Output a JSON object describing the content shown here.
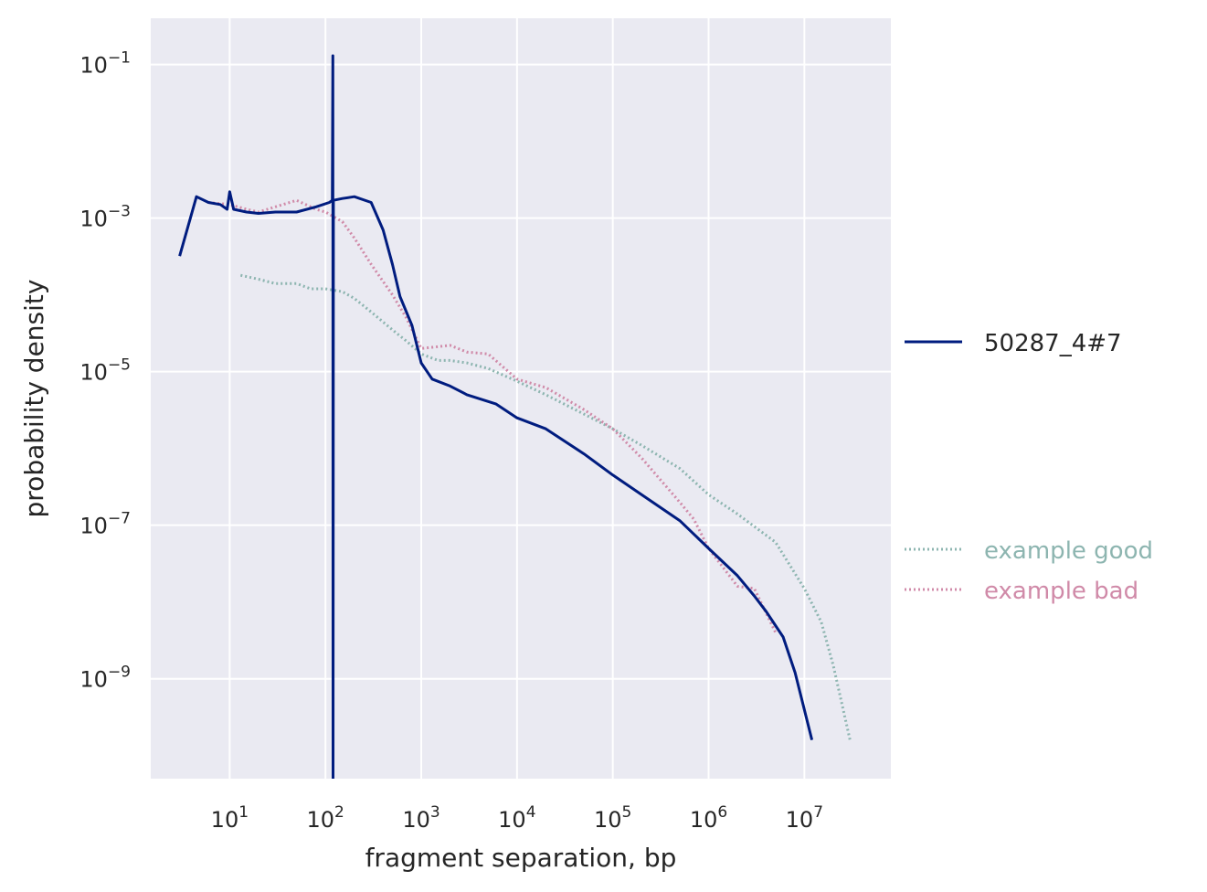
{
  "chart_data": {
    "type": "line",
    "xlabel": "fragment separation, bp",
    "ylabel": "probability density",
    "xscale": "log",
    "yscale": "log",
    "xlim": [
      1.5,
      80000000
    ],
    "ylim": [
      5e-11,
      0.4
    ],
    "grid": true,
    "x_ticks": [
      {
        "value": 10,
        "base": "10",
        "exp": "1"
      },
      {
        "value": 100,
        "base": "10",
        "exp": "2"
      },
      {
        "value": 1000,
        "base": "10",
        "exp": "3"
      },
      {
        "value": 10000,
        "base": "10",
        "exp": "4"
      },
      {
        "value": 100000,
        "base": "10",
        "exp": "5"
      },
      {
        "value": 1000000,
        "base": "10",
        "exp": "6"
      },
      {
        "value": 10000000,
        "base": "10",
        "exp": "7"
      }
    ],
    "y_ticks": [
      {
        "value": 0.1,
        "base": "10",
        "exp": "−1"
      },
      {
        "value": 0.001,
        "base": "10",
        "exp": "−3"
      },
      {
        "value": 1e-05,
        "base": "10",
        "exp": "−5"
      },
      {
        "value": 1e-07,
        "base": "10",
        "exp": "−7"
      },
      {
        "value": 1e-09,
        "base": "10",
        "exp": "−9"
      }
    ],
    "series": [
      {
        "name": "50287_4#7",
        "color": "#001c7f",
        "style": "solid",
        "points": [
          [
            3,
            0.00032
          ],
          [
            4.5,
            0.0019
          ],
          [
            6,
            0.0016
          ],
          [
            8,
            0.0015
          ],
          [
            9.4,
            0.0013
          ],
          [
            10,
            0.0022
          ],
          [
            11,
            0.0013
          ],
          [
            15,
            0.0012
          ],
          [
            20,
            0.00115
          ],
          [
            30,
            0.0012
          ],
          [
            50,
            0.0012
          ],
          [
            80,
            0.0014
          ],
          [
            110,
            0.0016
          ],
          [
            118,
            0.0017
          ],
          [
            119.5,
            0.13
          ],
          [
            120,
            5e-11
          ],
          [
            121,
            0.0017
          ],
          [
            150,
            0.0018
          ],
          [
            200,
            0.0019
          ],
          [
            300,
            0.0016
          ],
          [
            400,
            0.0007
          ],
          [
            500,
            0.00025
          ],
          [
            600,
            9.5e-05
          ],
          [
            800,
            4e-05
          ],
          [
            1000,
            1.3e-05
          ],
          [
            1300,
            8e-06
          ],
          [
            2000,
            6.5e-06
          ],
          [
            3000,
            5e-06
          ],
          [
            6000,
            3.8e-06
          ],
          [
            10000,
            2.5e-06
          ],
          [
            20000,
            1.8e-06
          ],
          [
            50000,
            8.5e-07
          ],
          [
            100000,
            4.5e-07
          ],
          [
            200000,
            2.5e-07
          ],
          [
            500000,
            1.15e-07
          ],
          [
            1000000,
            5e-08
          ],
          [
            2000000,
            2.2e-08
          ],
          [
            3000000,
            1.2e-08
          ],
          [
            4000000,
            7.5e-09
          ],
          [
            6000000,
            3.5e-09
          ],
          [
            8000000,
            1.2e-09
          ],
          [
            12000000,
            1.6e-10
          ]
        ]
      },
      {
        "name": "example good",
        "color": "#8db5b0",
        "style": "dotted",
        "points": [
          [
            13,
            0.00018
          ],
          [
            20,
            0.00016
          ],
          [
            30,
            0.00014
          ],
          [
            50,
            0.00014
          ],
          [
            70,
            0.00012
          ],
          [
            100,
            0.00012
          ],
          [
            150,
            0.00011
          ],
          [
            200,
            9e-05
          ],
          [
            300,
            6e-05
          ],
          [
            500,
            3.5e-05
          ],
          [
            700,
            2.5e-05
          ],
          [
            1000,
            1.7e-05
          ],
          [
            1500,
            1.4e-05
          ],
          [
            2000,
            1.4e-05
          ],
          [
            3000,
            1.3e-05
          ],
          [
            5000,
            1.1e-05
          ],
          [
            10000,
            7.5e-06
          ],
          [
            20000,
            5e-06
          ],
          [
            50000,
            2.8e-06
          ],
          [
            100000,
            1.8e-06
          ],
          [
            200000,
            1.1e-06
          ],
          [
            500000,
            5.5e-07
          ],
          [
            1000000,
            2.5e-07
          ],
          [
            2000000,
            1.4e-07
          ],
          [
            5000000,
            6e-08
          ],
          [
            10000000,
            1.5e-08
          ],
          [
            15000000,
            5.5e-09
          ],
          [
            20000000,
            1.5e-09
          ],
          [
            30000000,
            1.6e-10
          ]
        ]
      },
      {
        "name": "example bad",
        "color": "#d08aa8",
        "style": "dotted",
        "points": [
          [
            6,
            0.0016
          ],
          [
            10,
            0.0015
          ],
          [
            15,
            0.0013
          ],
          [
            20,
            0.0012
          ],
          [
            30,
            0.0014
          ],
          [
            50,
            0.0017
          ],
          [
            80,
            0.0013
          ],
          [
            100,
            0.0012
          ],
          [
            150,
            0.0009
          ],
          [
            200,
            0.00055
          ],
          [
            300,
            0.00025
          ],
          [
            500,
            0.0001
          ],
          [
            700,
            5e-05
          ],
          [
            1000,
            2e-05
          ],
          [
            2000,
            2.2e-05
          ],
          [
            3000,
            1.8e-05
          ],
          [
            5000,
            1.7e-05
          ],
          [
            10000,
            8e-06
          ],
          [
            20000,
            6.2e-06
          ],
          [
            50000,
            3.2e-06
          ],
          [
            100000,
            1.8e-06
          ],
          [
            200000,
            7.5e-07
          ],
          [
            500000,
            2e-07
          ],
          [
            700000,
            1.2e-07
          ],
          [
            1000000,
            5e-08
          ],
          [
            2000000,
            1.6e-08
          ],
          [
            3000000,
            1.5e-08
          ],
          [
            5000000,
            4e-09
          ]
        ]
      }
    ],
    "legend": [
      {
        "label": "50287_4#7",
        "placement": "right"
      },
      {
        "label": "example good",
        "placement": "right"
      },
      {
        "label": "example bad",
        "placement": "right"
      }
    ]
  }
}
